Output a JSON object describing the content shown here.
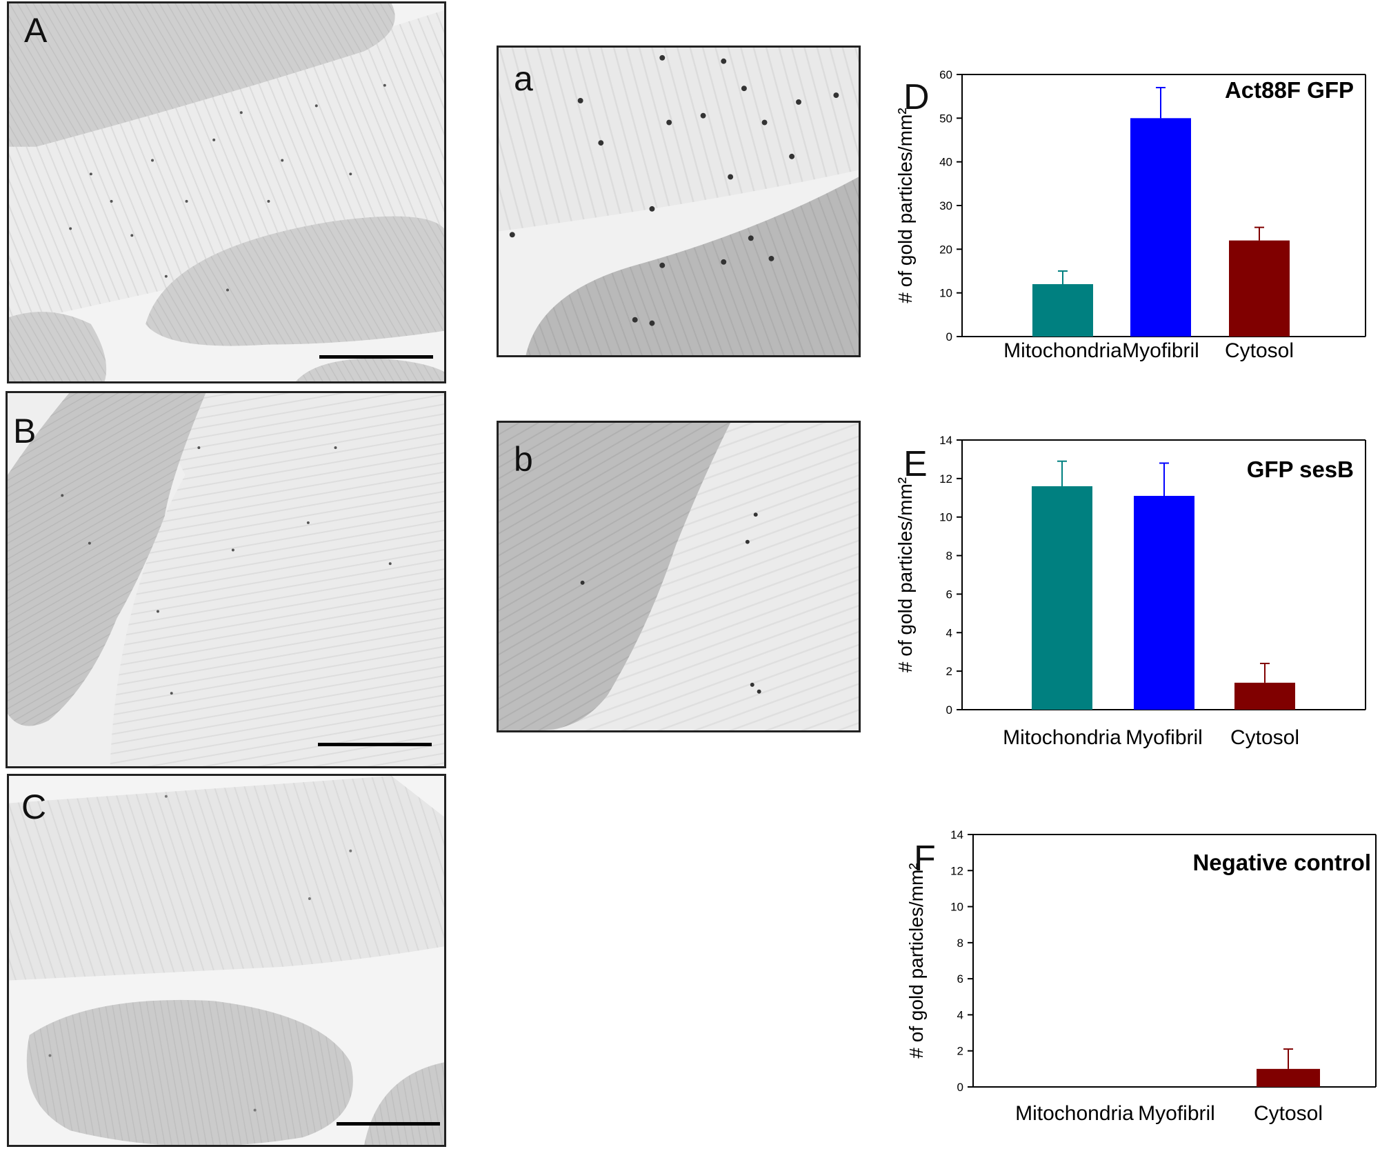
{
  "figure": {
    "em_panels": [
      {
        "label": "A",
        "has_scalebar": true
      },
      {
        "label": "B",
        "has_scalebar": true
      },
      {
        "label": "C",
        "has_scalebar": true
      },
      {
        "label": "a",
        "has_scalebar": false
      },
      {
        "label": "b",
        "has_scalebar": false
      }
    ]
  },
  "chart_data": [
    {
      "type": "bar",
      "panel_label": "D",
      "title": "Act88F GFP",
      "ylabel": "# of gold particles/mm²",
      "categories": [
        "Mitochondria",
        "Myofibril",
        "Cytosol"
      ],
      "values": [
        12,
        50,
        22
      ],
      "errors": [
        3,
        7,
        3
      ],
      "colors": [
        "#008080",
        "#0000ff",
        "#800000"
      ],
      "ylim": [
        0,
        60
      ],
      "yticks": [
        0,
        10,
        20,
        30,
        40,
        50,
        60
      ],
      "grid": false
    },
    {
      "type": "bar",
      "panel_label": "E",
      "title": "GFP sesB",
      "ylabel": "# of gold particles/mm²",
      "categories": [
        "Mitochondria",
        "Myofibril",
        "Cytosol"
      ],
      "values": [
        11.6,
        11.1,
        1.4
      ],
      "errors": [
        1.3,
        1.7,
        1.0
      ],
      "colors": [
        "#008080",
        "#0000ff",
        "#800000"
      ],
      "ylim": [
        0,
        14
      ],
      "yticks": [
        0,
        2,
        4,
        6,
        8,
        10,
        12,
        14
      ],
      "grid": false
    },
    {
      "type": "bar",
      "panel_label": "F",
      "title": "Negative control",
      "ylabel": "# of gold particles/mm²",
      "categories": [
        "Mitochondria",
        "Myofibril",
        "Cytosol"
      ],
      "values": [
        0,
        0,
        1.0
      ],
      "errors": [
        0,
        0,
        1.1
      ],
      "colors": [
        "#008080",
        "#0000ff",
        "#800000"
      ],
      "ylim": [
        0,
        14
      ],
      "yticks": [
        0,
        2,
        4,
        6,
        8,
        10,
        12,
        14
      ],
      "grid": false
    }
  ]
}
